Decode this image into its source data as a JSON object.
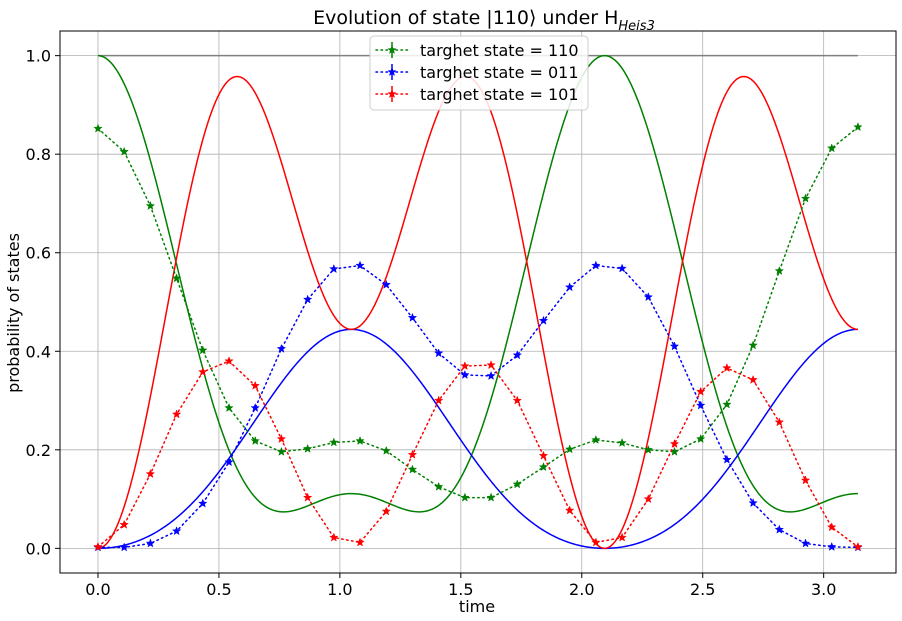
{
  "chart_data": {
    "type": "line",
    "title": "Evolution of state |110⟩ under H",
    "title_subscript": "Heis3",
    "xlabel": "time",
    "ylabel": "probability of states",
    "xlim": [
      -0.157,
      3.299
    ],
    "ylim": [
      -0.05,
      1.05
    ],
    "xticks": [
      0.0,
      0.5,
      1.0,
      1.5,
      2.0,
      2.5,
      3.0
    ],
    "xtick_labels": [
      "0.0",
      "0.5",
      "1.0",
      "1.5",
      "2.0",
      "2.5",
      "3.0"
    ],
    "yticks": [
      0.0,
      0.2,
      0.4,
      0.6,
      0.8,
      1.0
    ],
    "ytick_labels": [
      "0.0",
      "0.2",
      "0.4",
      "0.6",
      "0.8",
      "1.0"
    ],
    "grid": true,
    "legend_position": "top-center",
    "reference_line": {
      "y": 1.0,
      "x": [
        0.0,
        3.1416
      ],
      "color": "#808080"
    },
    "theory_x_range": [
      0.0,
      3.1416
    ],
    "series": [
      {
        "name": "targhet state = 110",
        "color": "#008000",
        "x": [
          0.0,
          0.1083,
          0.2167,
          0.325,
          0.4333,
          0.5417,
          0.65,
          0.7583,
          0.8667,
          0.975,
          1.0833,
          1.1917,
          1.3,
          1.4083,
          1.5167,
          1.625,
          1.7333,
          1.8417,
          1.95,
          2.0583,
          2.1667,
          2.275,
          2.3833,
          2.4917,
          2.6,
          2.7083,
          2.8167,
          2.925,
          3.0333,
          3.1416
        ],
        "values": [
          0.852,
          0.805,
          0.695,
          0.548,
          0.402,
          0.285,
          0.218,
          0.196,
          0.202,
          0.215,
          0.218,
          0.198,
          0.16,
          0.125,
          0.103,
          0.103,
          0.13,
          0.165,
          0.201,
          0.22,
          0.214,
          0.2,
          0.196,
          0.222,
          0.292,
          0.412,
          0.563,
          0.71,
          0.812,
          0.855
        ]
      },
      {
        "name": "targhet state = 011",
        "color": "#0000ff",
        "x": [
          0.0,
          0.1083,
          0.2167,
          0.325,
          0.4333,
          0.5417,
          0.65,
          0.7583,
          0.8667,
          0.975,
          1.0833,
          1.1917,
          1.3,
          1.4083,
          1.5167,
          1.625,
          1.7333,
          1.8417,
          1.95,
          2.0583,
          2.1667,
          2.275,
          2.3833,
          2.4917,
          2.6,
          2.7083,
          2.8167,
          2.925,
          3.0333,
          3.1416
        ],
        "values": [
          0.002,
          0.002,
          0.01,
          0.035,
          0.091,
          0.175,
          0.285,
          0.405,
          0.505,
          0.567,
          0.574,
          0.535,
          0.468,
          0.396,
          0.352,
          0.35,
          0.392,
          0.462,
          0.53,
          0.574,
          0.568,
          0.51,
          0.41,
          0.29,
          0.18,
          0.092,
          0.038,
          0.01,
          0.003,
          0.002
        ]
      },
      {
        "name": "targhet state = 101",
        "color": "#ff0000",
        "x": [
          0.0,
          0.1083,
          0.2167,
          0.325,
          0.4333,
          0.5417,
          0.65,
          0.7583,
          0.8667,
          0.975,
          1.0833,
          1.1917,
          1.3,
          1.4083,
          1.5167,
          1.625,
          1.7333,
          1.8417,
          1.95,
          2.0583,
          2.1667,
          2.275,
          2.3833,
          2.4917,
          2.6,
          2.7083,
          2.8167,
          2.925,
          3.0333,
          3.1416
        ],
        "values": [
          0.003,
          0.048,
          0.151,
          0.272,
          0.358,
          0.38,
          0.33,
          0.222,
          0.103,
          0.022,
          0.012,
          0.075,
          0.19,
          0.3,
          0.37,
          0.372,
          0.3,
          0.188,
          0.077,
          0.012,
          0.022,
          0.1,
          0.212,
          0.318,
          0.366,
          0.342,
          0.256,
          0.138,
          0.043,
          0.003
        ]
      }
    ]
  }
}
